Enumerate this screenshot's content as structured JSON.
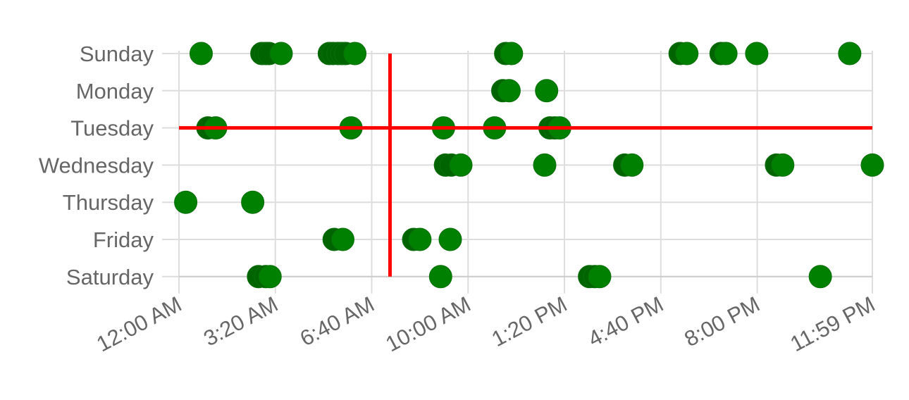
{
  "chart_data": {
    "type": "scatter",
    "y_categories": [
      "Sunday",
      "Monday",
      "Tuesday",
      "Wednesday",
      "Thursday",
      "Friday",
      "Saturday"
    ],
    "x_range_minutes": [
      0,
      1439
    ],
    "x_ticks": [
      {
        "minute": 0,
        "label": "12:00 AM"
      },
      {
        "minute": 200,
        "label": "3:20 AM"
      },
      {
        "minute": 400,
        "label": "6:40 AM"
      },
      {
        "minute": 600,
        "label": "10:00 AM"
      },
      {
        "minute": 800,
        "label": "1:20 PM"
      },
      {
        "minute": 1000,
        "label": "4:40 PM"
      },
      {
        "minute": 1200,
        "label": "8:00 PM"
      },
      {
        "minute": 1439,
        "label": "11:59 PM"
      }
    ],
    "grid": true,
    "marker_color": "#008000",
    "marker_overlap_color": "#006400",
    "crosshair_color": "#ff0000",
    "crosshair": {
      "minute": 438,
      "day": "Tuesday"
    },
    "points": [
      {
        "day": "Sunday",
        "minute": 46
      },
      {
        "day": "Sunday",
        "minute": 172
      },
      {
        "day": "Sunday",
        "minute": 180
      },
      {
        "day": "Sunday",
        "minute": 187
      },
      {
        "day": "Sunday",
        "minute": 212
      },
      {
        "day": "Sunday",
        "minute": 312
      },
      {
        "day": "Sunday",
        "minute": 320
      },
      {
        "day": "Sunday",
        "minute": 330
      },
      {
        "day": "Sunday",
        "minute": 338
      },
      {
        "day": "Sunday",
        "minute": 346
      },
      {
        "day": "Sunday",
        "minute": 365
      },
      {
        "day": "Sunday",
        "minute": 678
      },
      {
        "day": "Sunday",
        "minute": 690
      },
      {
        "day": "Sunday",
        "minute": 1040
      },
      {
        "day": "Sunday",
        "minute": 1054
      },
      {
        "day": "Sunday",
        "minute": 1125
      },
      {
        "day": "Sunday",
        "minute": 1135
      },
      {
        "day": "Sunday",
        "minute": 1199
      },
      {
        "day": "Sunday",
        "minute": 1392
      },
      {
        "day": "Monday",
        "minute": 672
      },
      {
        "day": "Monday",
        "minute": 685
      },
      {
        "day": "Monday",
        "minute": 763
      },
      {
        "day": "Tuesday",
        "minute": 60
      },
      {
        "day": "Tuesday",
        "minute": 76
      },
      {
        "day": "Tuesday",
        "minute": 357
      },
      {
        "day": "Tuesday",
        "minute": 549
      },
      {
        "day": "Tuesday",
        "minute": 655
      },
      {
        "day": "Tuesday",
        "minute": 770
      },
      {
        "day": "Tuesday",
        "minute": 780
      },
      {
        "day": "Tuesday",
        "minute": 790
      },
      {
        "day": "Wednesday",
        "minute": 553
      },
      {
        "day": "Wednesday",
        "minute": 565
      },
      {
        "day": "Wednesday",
        "minute": 585
      },
      {
        "day": "Wednesday",
        "minute": 759
      },
      {
        "day": "Wednesday",
        "minute": 925
      },
      {
        "day": "Wednesday",
        "minute": 940
      },
      {
        "day": "Wednesday",
        "minute": 1240
      },
      {
        "day": "Wednesday",
        "minute": 1253
      },
      {
        "day": "Wednesday",
        "minute": 1439
      },
      {
        "day": "Thursday",
        "minute": 14
      },
      {
        "day": "Thursday",
        "minute": 153
      },
      {
        "day": "Friday",
        "minute": 322
      },
      {
        "day": "Friday",
        "minute": 340
      },
      {
        "day": "Friday",
        "minute": 487
      },
      {
        "day": "Friday",
        "minute": 500
      },
      {
        "day": "Friday",
        "minute": 563
      },
      {
        "day": "Saturday",
        "minute": 165
      },
      {
        "day": "Saturday",
        "minute": 180
      },
      {
        "day": "Saturday",
        "minute": 189
      },
      {
        "day": "Saturday",
        "minute": 543
      },
      {
        "day": "Saturday",
        "minute": 852
      },
      {
        "day": "Saturday",
        "minute": 863
      },
      {
        "day": "Saturday",
        "minute": 873
      },
      {
        "day": "Saturday",
        "minute": 1331
      }
    ]
  }
}
